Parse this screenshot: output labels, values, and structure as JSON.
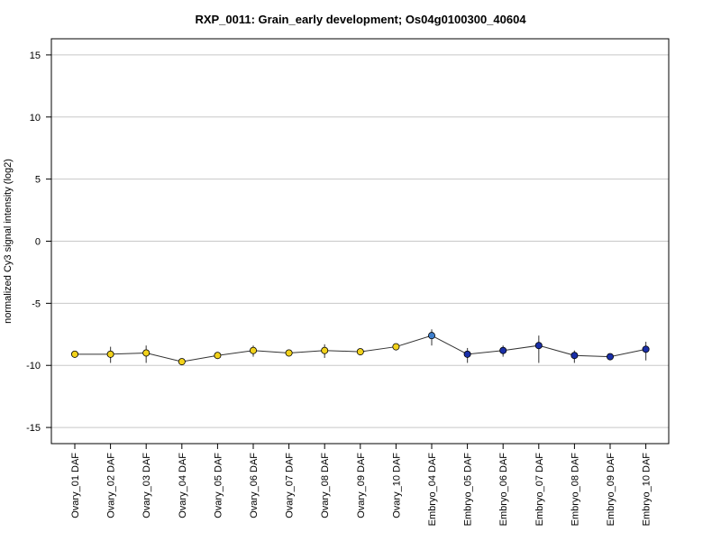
{
  "chart_data": {
    "type": "line",
    "title": "RXP_0011: Grain_early development; Os04g0100300_40604",
    "ylabel": "normalized Cy3 signal intensity (log2)",
    "xlabel": "",
    "ylim": [
      -16.3,
      16.3
    ],
    "yticks": [
      -15,
      -10,
      -5,
      0,
      5,
      10,
      15
    ],
    "grid": true,
    "categories": [
      "Ovary_01 DAF",
      "Ovary_02 DAF",
      "Ovary_03 DAF",
      "Ovary_04 DAF",
      "Ovary_05 DAF",
      "Ovary_06 DAF",
      "Ovary_07 DAF",
      "Ovary_08 DAF",
      "Ovary_09 DAF",
      "Ovary_10 DAF",
      "Embryo_04 DAF",
      "Embryo_05 DAF",
      "Embryo_06 DAF",
      "Embryo_07 DAF",
      "Embryo_08 DAF",
      "Embryo_09 DAF",
      "Embryo_10 DAF"
    ],
    "values": [
      -9.1,
      -9.1,
      -9.0,
      -9.7,
      -9.2,
      -8.8,
      -9.0,
      -8.8,
      -8.9,
      -8.5,
      -7.6,
      -9.1,
      -8.8,
      -8.4,
      -9.2,
      -9.3,
      -8.7
    ],
    "error_low": [
      -9.3,
      -9.8,
      -9.8,
      -9.9,
      -9.4,
      -9.3,
      -9.2,
      -9.4,
      -9.0,
      -8.6,
      -8.4,
      -9.8,
      -9.3,
      -9.8,
      -9.8,
      -9.4,
      -9.6
    ],
    "error_high": [
      -8.9,
      -8.5,
      -8.4,
      -9.5,
      -9.0,
      -8.4,
      -8.8,
      -8.3,
      -8.7,
      -8.3,
      -7.1,
      -8.6,
      -8.4,
      -7.6,
      -8.8,
      -9.1,
      -8.1
    ],
    "marker_colors": [
      "#f2d21b",
      "#f2d21b",
      "#f2d21b",
      "#f2d21b",
      "#f2d21b",
      "#f2d21b",
      "#f2d21b",
      "#f2d21b",
      "#f2d21b",
      "#f2d21b",
      "#3e7ecb",
      "#1a2fa8",
      "#1a2fa8",
      "#1a2fa8",
      "#1a2fa8",
      "#1a2fa8",
      "#1a2fa8"
    ]
  }
}
